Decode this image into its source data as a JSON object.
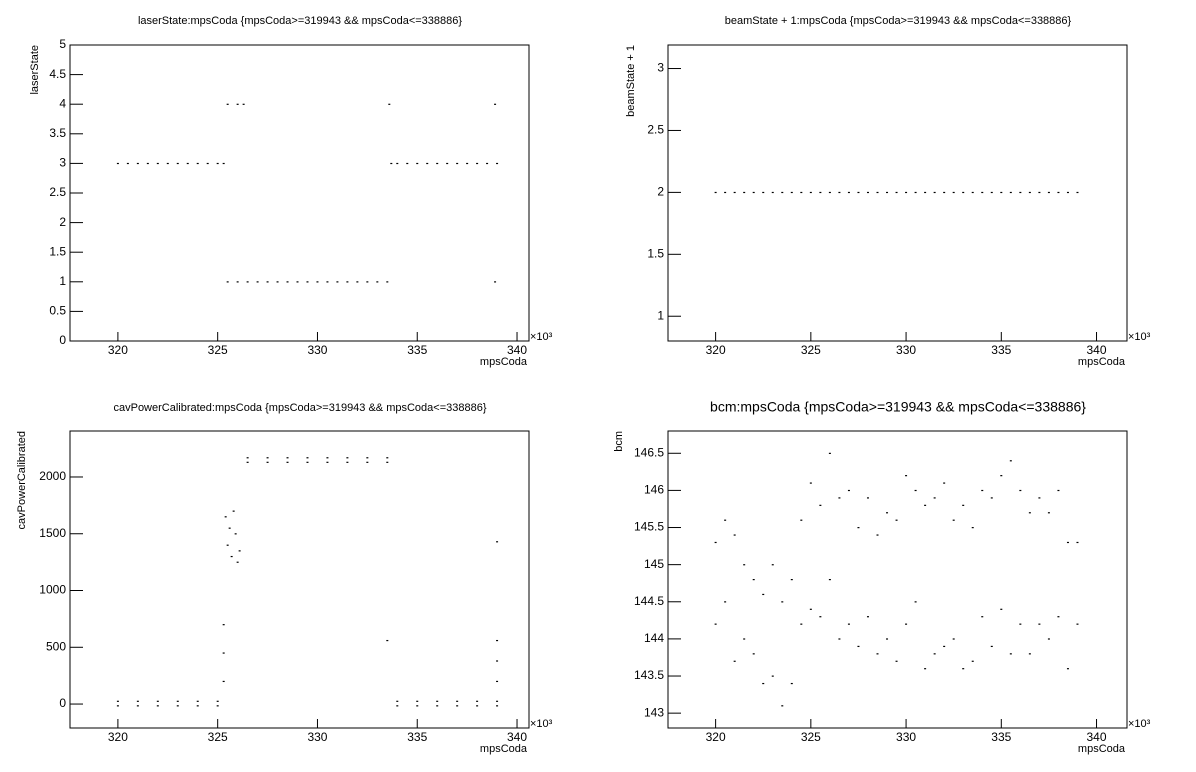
{
  "chart_data": [
    {
      "type": "scatter",
      "title": "laserState:mpsCoda {mpsCoda>=319943 && mpsCoda<=338886}",
      "x_label": "mpsCoda",
      "y_label": "laserState",
      "x_exponent_label": "×10³",
      "color": "#000000",
      "xlim": [
        317.6,
        340.6
      ],
      "xticks": [
        320,
        325,
        330,
        335,
        340
      ],
      "ylim": [
        0,
        5
      ],
      "yticks": [
        0,
        0.5,
        1,
        1.5,
        2,
        2.5,
        3,
        3.5,
        4,
        4.5,
        5
      ],
      "x": [
        320,
        320.5,
        321,
        321.5,
        322,
        322.5,
        323,
        323.5,
        324,
        324.5,
        325,
        325.3,
        325.5,
        326,
        326.3,
        325.5,
        326,
        326.5,
        327,
        327.5,
        328,
        328.5,
        329,
        329.5,
        330,
        330.5,
        331,
        331.5,
        332,
        332.5,
        333,
        333.5,
        333.7,
        334,
        334.5,
        335,
        335.5,
        336,
        336.5,
        337,
        337.5,
        338,
        338.5,
        339,
        333.6,
        338.9,
        338.9
      ],
      "y": [
        3,
        3,
        3,
        3,
        3,
        3,
        3,
        3,
        3,
        3,
        3,
        3,
        4,
        4,
        4,
        1,
        1,
        1,
        1,
        1,
        1,
        1,
        1,
        1,
        1,
        1,
        1,
        1,
        1,
        1,
        1,
        1,
        3,
        3,
        3,
        3,
        3,
        3,
        3,
        3,
        3,
        3,
        3,
        3,
        4,
        4,
        1
      ]
    },
    {
      "type": "scatter",
      "title": "beamState + 1:mpsCoda {mpsCoda>=319943 && mpsCoda<=338886}",
      "x_label": "mpsCoda",
      "y_label": "beamState + 1",
      "x_exponent_label": "×10³",
      "color": "#000000",
      "xlim": [
        317.5,
        341.6
      ],
      "xticks": [
        320,
        325,
        330,
        335,
        340
      ],
      "ylim": [
        0.8,
        3.19
      ],
      "yticks": [
        1,
        1.5,
        2,
        2.5,
        3
      ],
      "x": [
        320,
        320.5,
        321,
        321.5,
        322,
        322.5,
        323,
        323.5,
        324,
        324.5,
        325,
        325.5,
        326,
        326.5,
        327,
        327.5,
        328,
        328.5,
        329,
        329.5,
        330,
        330.5,
        331,
        331.5,
        332,
        332.5,
        333,
        333.5,
        334,
        334.5,
        335,
        335.5,
        336,
        336.5,
        337,
        337.5,
        338,
        338.5,
        339
      ],
      "y": [
        2,
        2,
        2,
        2,
        2,
        2,
        2,
        2,
        2,
        2,
        2,
        2,
        2,
        2,
        2,
        2,
        2,
        2,
        2,
        2,
        2,
        2,
        2,
        2,
        2,
        2,
        2,
        2,
        2,
        2,
        2,
        2,
        2,
        2,
        2,
        2,
        2,
        2,
        2
      ]
    },
    {
      "type": "scatter",
      "title": "cavPowerCalibrated:mpsCoda {mpsCoda>=319943 && mpsCoda<=338886}",
      "x_label": "mpsCoda",
      "y_label": "cavPowerCalibrated",
      "x_exponent_label": "×10³",
      "color": "#000000",
      "xlim": [
        317.6,
        340.6
      ],
      "xticks": [
        320,
        325,
        330,
        335,
        340
      ],
      "ylim": [
        -211,
        2405
      ],
      "yticks": [
        0,
        500,
        1000,
        1500,
        2000
      ],
      "x": [
        320,
        321,
        322,
        323,
        324,
        325,
        320,
        321,
        322,
        323,
        324,
        325,
        325.4,
        325.5,
        325.7,
        325.9,
        326.1,
        325.6,
        325.8,
        326.0,
        325.3,
        325.3,
        325.3,
        326.5,
        327.5,
        328.5,
        329.5,
        330.5,
        331.5,
        332.5,
        333.5,
        326.5,
        327.5,
        328.5,
        329.5,
        330.5,
        331.5,
        332.5,
        333.5,
        334,
        335,
        336,
        337,
        338,
        339,
        334,
        335,
        336,
        337,
        338,
        339,
        333.5,
        339,
        339,
        339,
        339
      ],
      "y": [
        25,
        25,
        25,
        25,
        25,
        25,
        -15,
        -15,
        -15,
        -15,
        -15,
        -15,
        1650,
        1400,
        1300,
        1500,
        1350,
        1550,
        1700,
        1250,
        700,
        450,
        200,
        2170,
        2170,
        2170,
        2170,
        2170,
        2170,
        2170,
        2170,
        2130,
        2130,
        2130,
        2130,
        2130,
        2130,
        2130,
        2130,
        25,
        25,
        25,
        25,
        25,
        25,
        -15,
        -15,
        -15,
        -15,
        -15,
        -15,
        560,
        1430,
        560,
        380,
        200
      ]
    },
    {
      "type": "scatter",
      "title": "bcm:mpsCoda {mpsCoda>=319943 && mpsCoda<=338886}",
      "x_label": "mpsCoda",
      "y_label": "bcm",
      "x_exponent_label": "×10³",
      "color": "#000000",
      "xlim": [
        317.5,
        341.6
      ],
      "xticks": [
        320,
        325,
        330,
        335,
        340
      ],
      "ylim": [
        142.8,
        146.8
      ],
      "yticks": [
        143,
        143.5,
        144,
        144.5,
        145,
        145.5,
        146,
        146.5
      ],
      "x": [
        320,
        320,
        320.5,
        320.5,
        321,
        321,
        321.5,
        321.5,
        322,
        322,
        322.5,
        322.5,
        323,
        323,
        323.5,
        323.5,
        324,
        324,
        324.5,
        324.5,
        325,
        325,
        325.5,
        325.5,
        326,
        326,
        326.5,
        326.5,
        327,
        327,
        327.5,
        327.5,
        328,
        328,
        328.5,
        328.5,
        329,
        329,
        329.5,
        329.5,
        330,
        330,
        330.5,
        330.5,
        331,
        331,
        331.5,
        331.5,
        332,
        332,
        332.5,
        332.5,
        333,
        333,
        333.5,
        333.5,
        334,
        334,
        334.5,
        334.5,
        335,
        335,
        335.5,
        335.5,
        336,
        336,
        336.5,
        336.5,
        337,
        337,
        337.5,
        337.5,
        338,
        338,
        338.5,
        338.5,
        339,
        339
      ],
      "y": [
        144.2,
        145.3,
        144.5,
        145.6,
        143.7,
        145.4,
        144.0,
        145.0,
        143.8,
        144.8,
        143.4,
        144.6,
        143.5,
        145.0,
        143.1,
        144.5,
        143.4,
        144.8,
        144.2,
        145.6,
        144.4,
        146.1,
        144.3,
        145.8,
        144.8,
        146.5,
        144.0,
        145.9,
        144.2,
        146.0,
        143.9,
        145.5,
        144.3,
        145.9,
        143.8,
        145.4,
        144.0,
        145.7,
        143.7,
        145.6,
        144.2,
        146.2,
        144.5,
        146.0,
        143.6,
        145.8,
        143.8,
        145.9,
        143.9,
        146.1,
        144.0,
        145.6,
        143.6,
        145.8,
        143.7,
        145.5,
        144.3,
        146.0,
        143.9,
        145.9,
        144.4,
        146.2,
        143.8,
        146.4,
        144.2,
        146.0,
        143.8,
        145.7,
        144.2,
        145.9,
        144.0,
        145.7,
        144.3,
        146.0,
        143.6,
        145.3,
        144.2,
        145.3
      ]
    }
  ]
}
